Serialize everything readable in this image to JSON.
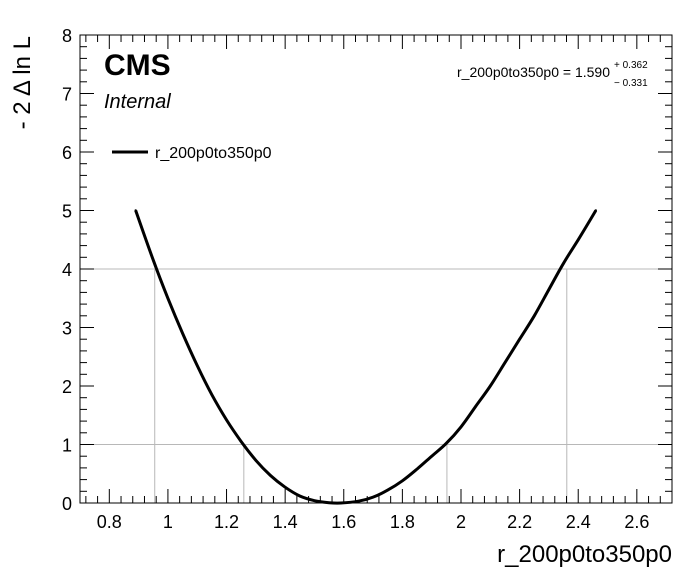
{
  "chart_data": {
    "type": "line",
    "title": "",
    "xlabel": "r_200p0to350p0",
    "ylabel": "- 2 Δ ln L",
    "xlim": [
      0.7,
      2.72
    ],
    "ylim": [
      0,
      8
    ],
    "x_ticks": [
      "0.8",
      "1",
      "1.2",
      "1.4",
      "1.6",
      "1.8",
      "2",
      "2.2",
      "2.4",
      "2.6"
    ],
    "x_tick_values": [
      0.8,
      1.0,
      1.2,
      1.4,
      1.6,
      1.8,
      2.0,
      2.2,
      2.4,
      2.6
    ],
    "y_ticks": [
      "0",
      "1",
      "2",
      "3",
      "4",
      "5",
      "6",
      "7",
      "8"
    ],
    "y_tick_values": [
      0,
      1,
      2,
      3,
      4,
      5,
      6,
      7,
      8
    ],
    "grid": {
      "horizontal": [
        1,
        4
      ],
      "vertical": [
        0.955,
        1.259,
        1.952,
        2.361
      ]
    },
    "series": [
      {
        "name": "r_200p0to350p0",
        "color": "#000000",
        "x": [
          0.89,
          0.95,
          1.0,
          1.05,
          1.1,
          1.15,
          1.2,
          1.25,
          1.3,
          1.35,
          1.4,
          1.45,
          1.5,
          1.55,
          1.59,
          1.65,
          1.7,
          1.75,
          1.8,
          1.85,
          1.9,
          1.95,
          2.0,
          2.05,
          2.1,
          2.15,
          2.2,
          2.25,
          2.3,
          2.35,
          2.4,
          2.46
        ],
        "y": [
          5.0,
          4.15,
          3.5,
          2.9,
          2.35,
          1.85,
          1.42,
          1.05,
          0.73,
          0.47,
          0.27,
          0.12,
          0.04,
          0.005,
          0.0,
          0.03,
          0.1,
          0.22,
          0.38,
          0.58,
          0.8,
          1.02,
          1.3,
          1.65,
          2.0,
          2.4,
          2.8,
          3.2,
          3.65,
          4.1,
          4.5,
          5.0
        ]
      }
    ],
    "legend": {
      "position": "top-left",
      "entries": [
        "r_200p0to350p0"
      ]
    },
    "annotations": {
      "experiment": "CMS",
      "status": "Internal",
      "result_main": "r_200p0to350p0 = 1.590",
      "result_up": "+ 0.362",
      "result_down": "− 0.331"
    }
  }
}
